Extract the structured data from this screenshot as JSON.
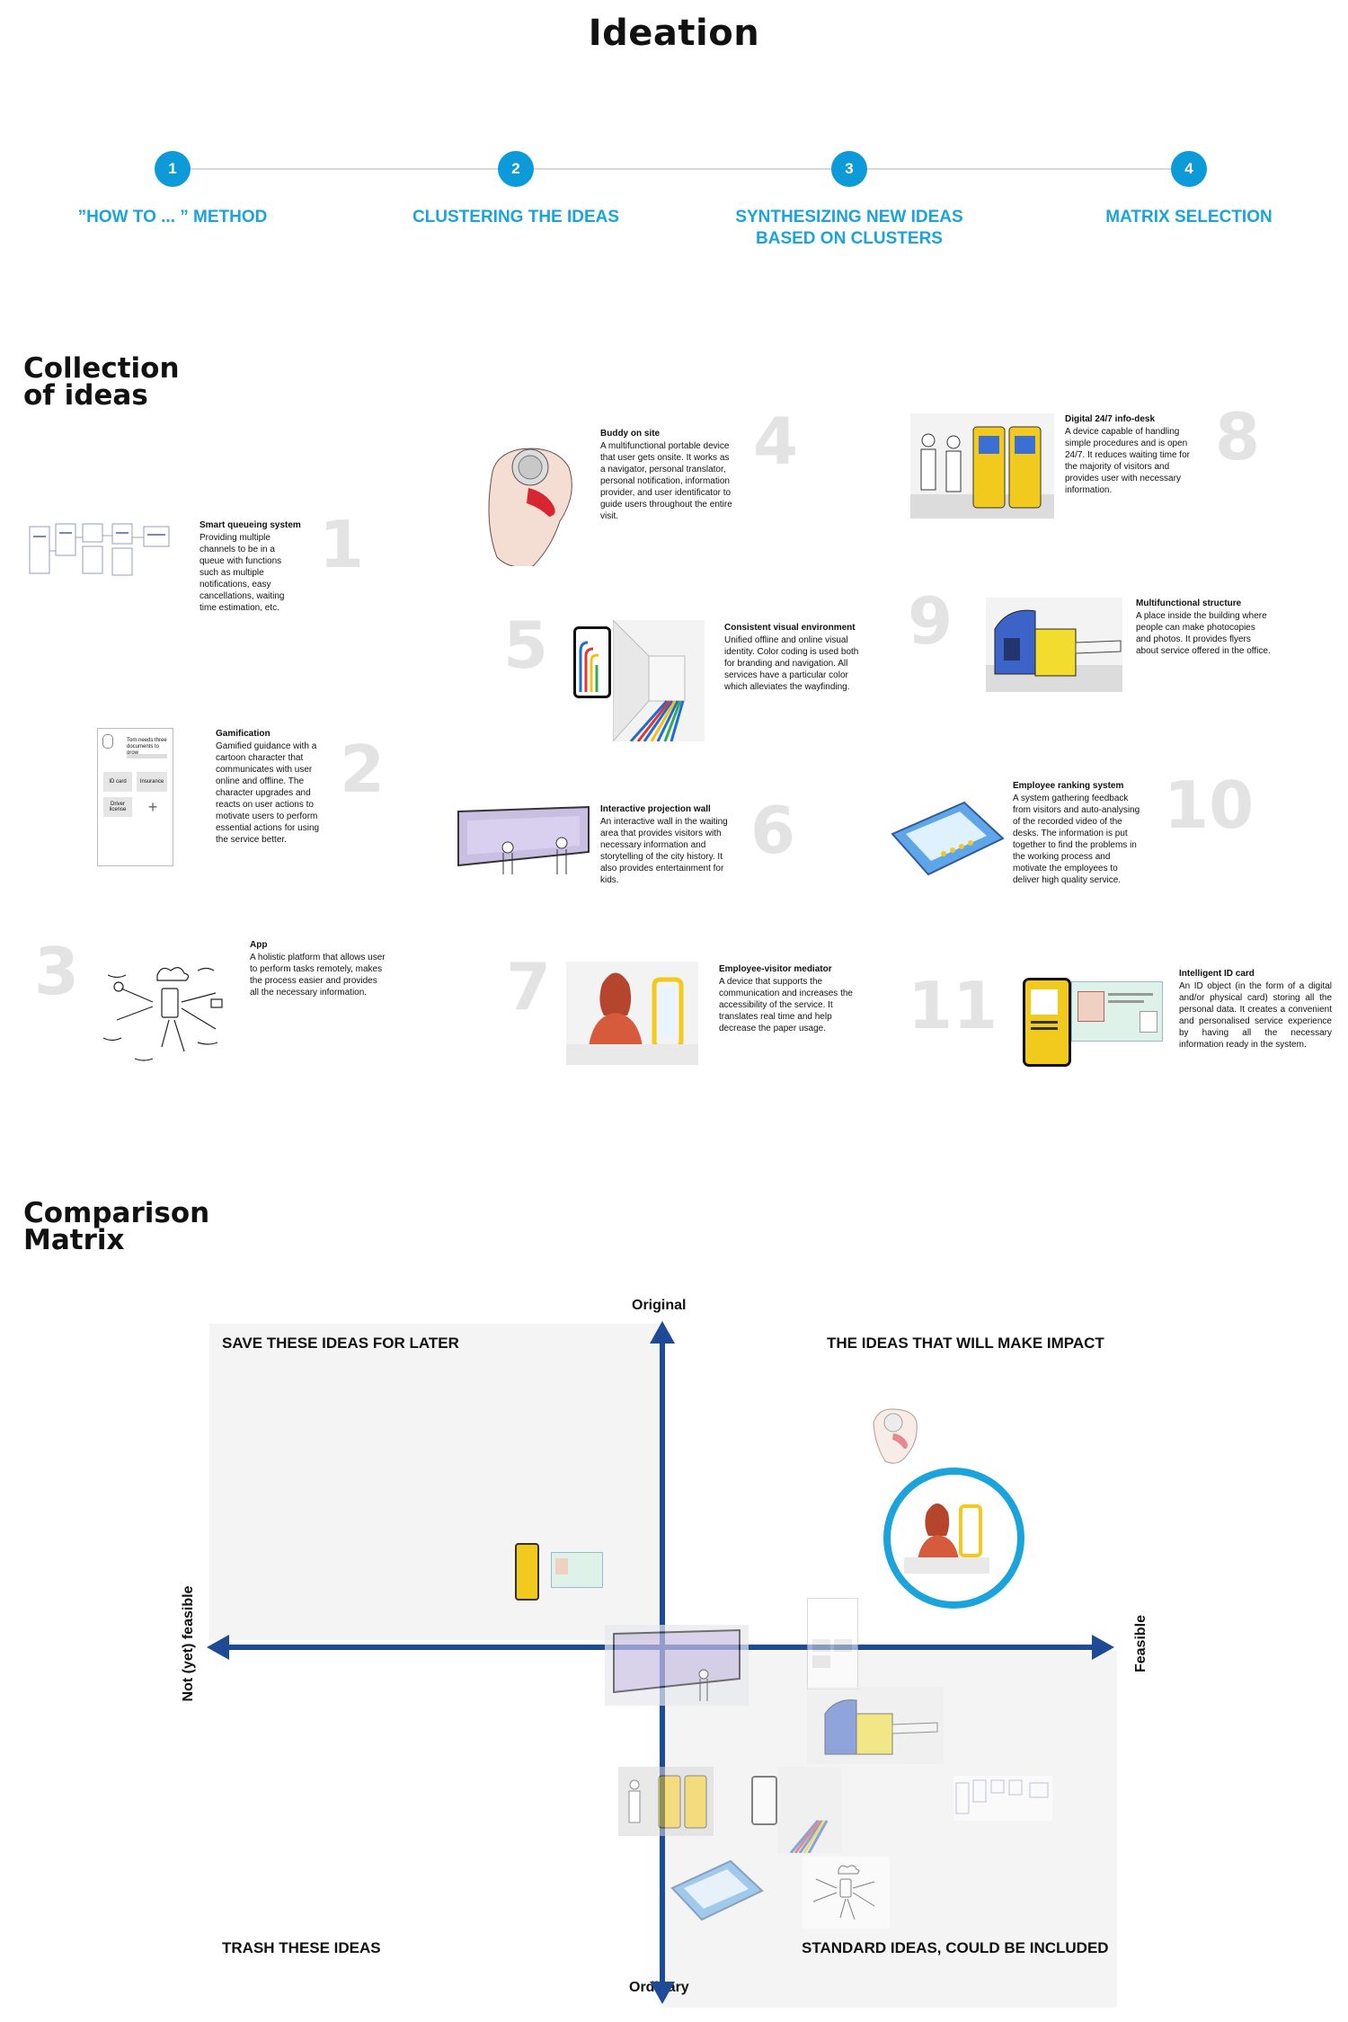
{
  "header": {
    "title": "Ideation"
  },
  "steps": [
    {
      "number": "1",
      "label": "”HOW TO ... ” METHOD"
    },
    {
      "number": "2",
      "label": "CLUSTERING THE IDEAS"
    },
    {
      "number": "3",
      "label": "SYNTHESIZING NEW IDEAS BASED ON CLUSTERS"
    },
    {
      "number": "4",
      "label": "MATRIX SELECTION"
    }
  ],
  "collection": {
    "title_line1": "Collection",
    "title_line2": "of ideas",
    "ideas": [
      {
        "number": "1",
        "title": "Smart queueing system",
        "desc": "Providing multiple channels to be in a queue with functions such as multiple notifications, easy cancellations, waiting time estimation, etc."
      },
      {
        "number": "2",
        "title": "Gamification",
        "desc": "Gamified guidance with a cartoon character that communicates with user online and offline. The character upgrades and reacts on user actions to motivate users to perform essential actions for using the service better."
      },
      {
        "number": "3",
        "title": "App",
        "desc": "A holistic platform that allows user to perform tasks remotely, makes the process easier and provides all the necessary information."
      },
      {
        "number": "4",
        "title": "Buddy on site",
        "desc": "A multifunctional portable device that user gets onsite. It works as a navigator, personal translator, personal notification, information provider, and user identificator to guide users throughout the entire visit."
      },
      {
        "number": "5",
        "title": "Consistent visual environment",
        "desc": "Unified offline and online visual identity. Color coding is used both for branding and navigation. All services have a particular color which alleviates the wayfinding."
      },
      {
        "number": "6",
        "title": "Interactive projection wall",
        "desc": "An interactive wall in the waiting area that provides visitors with necessary information and storytelling of the city history. It also provides entertainment for kids."
      },
      {
        "number": "7",
        "title": "Employee-visitor mediator",
        "desc": "A device that supports the communication and increases the accessibility of the service. It translates real time and help decrease the paper usage."
      },
      {
        "number": "8",
        "title": "Digital 24/7 info-desk",
        "desc": "A device capable of handling simple procedures and is open 24/7. It reduces waiting time for the majority of visitors and provides user with necessary information."
      },
      {
        "number": "9",
        "title": "Multifunctional structure",
        "desc": "A place inside the building where people can make photocopies and photos. It provides flyers about service offered in the office."
      },
      {
        "number": "10",
        "title": "Employee ranking system",
        "desc": "A system gathering feedback from visitors and auto-analysing of the recorded video of the desks. The information is put together to find the problems in the working process and motivate the employees to deliver high quality service."
      },
      {
        "number": "11",
        "title": "Intelligent ID card",
        "desc": "An ID object (in the form of a digital and/or physical card) storing all the personal data. It creates a convenient and personalised service experience by having all the necessary information ready in the system."
      }
    ]
  },
  "comparison": {
    "title_line1": "Comparison",
    "title_line2": "Matrix",
    "axis_top": "Original",
    "axis_bottom": "Ordinary",
    "axis_left": "Not (yet) feasible",
    "axis_right": "Feasible",
    "quadrants": {
      "top_left": "SAVE THESE IDEAS FOR LATER",
      "top_right": "THE IDEAS THAT WILL MAKE IMPACT",
      "bottom_left": "TRASH THESE IDEAS",
      "bottom_right": "STANDARD IDEAS, COULD BE INCLUDED"
    }
  },
  "gamification_mock": {
    "speech": "Tom needs three documents to grow",
    "btn1": "ID card",
    "btn2": "Insurance",
    "btn3": "Driver license",
    "plus": "+"
  },
  "colors": {
    "accent": "#0d9ad8",
    "step_label": "#1ba3dc",
    "axis": "#1f4b96",
    "highlight_ring": "#1ba3dc"
  }
}
